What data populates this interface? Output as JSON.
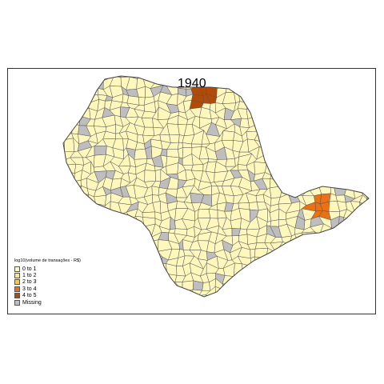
{
  "map": {
    "title": "1940",
    "region": "São Paulo state municipalities",
    "legend": {
      "title": "log10(volume de transações - R$)",
      "items": [
        {
          "label": "0 to 1",
          "color": "#FFF7BC"
        },
        {
          "label": "1 to 2",
          "color": "#FEE391"
        },
        {
          "label": "2 to 3",
          "color": "#FEC44F"
        },
        {
          "label": "3 to 4",
          "color": "#EC7014"
        },
        {
          "label": "4 to 5",
          "color": "#B34A05"
        },
        {
          "label": "Missing",
          "color": "#BEBEBE"
        }
      ]
    },
    "colors": {
      "base_fill": "#FFF7BC",
      "missing_fill": "#BEBEBE",
      "border": "#555555",
      "high_north": "#B34A05",
      "high_east": "#EC7014"
    }
  }
}
